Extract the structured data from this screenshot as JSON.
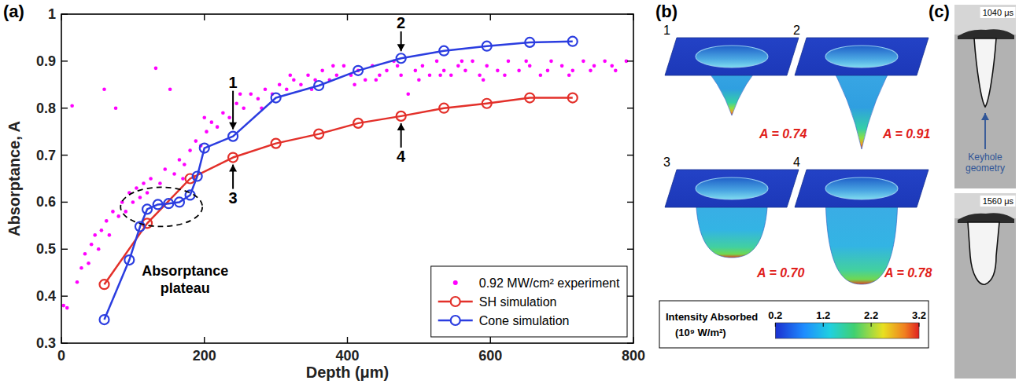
{
  "chart_data": {
    "type": "line",
    "xlabel": "Depth (μm)",
    "ylabel": "Absorptance, A",
    "xlim": [
      0,
      800
    ],
    "xticks": [
      0,
      200,
      400,
      600,
      800
    ],
    "ylim": [
      0.3,
      1
    ],
    "yticks": [
      0.3,
      0.4,
      0.5,
      0.6,
      0.7,
      0.8,
      0.9,
      1
    ],
    "grid": false,
    "legend": "lower right",
    "series": [
      {
        "name": "0.92 MW/cm² experiment",
        "type": "scatter",
        "marker": "dot",
        "color": "#ff00ff",
        "x": [
          3,
          8,
          15,
          22,
          28,
          33,
          38,
          42,
          47,
          52,
          56,
          60,
          63,
          67,
          72,
          76,
          80,
          85,
          90,
          95,
          100,
          105,
          110,
          115,
          120,
          125,
          132,
          138,
          145,
          152,
          158,
          165,
          172,
          180,
          188,
          195,
          203,
          210,
          218,
          226,
          235,
          245,
          255,
          265,
          275,
          285,
          295,
          305,
          315,
          325,
          335,
          345,
          355,
          365,
          375,
          385,
          395,
          405,
          415,
          425,
          435,
          445,
          455,
          465,
          475,
          485,
          495,
          505,
          515,
          525,
          535,
          545,
          555,
          565,
          575,
          585,
          595,
          610,
          625,
          640,
          655,
          670,
          685,
          700,
          715,
          730,
          745,
          760,
          775,
          790,
          320,
          350,
          380,
          410,
          440,
          470,
          500,
          530,
          560,
          590,
          620,
          650,
          680,
          710,
          740,
          770,
          250,
          280,
          200,
          170
        ],
        "values": [
          0.38,
          0.375,
          0.805,
          0.43,
          0.46,
          0.49,
          0.47,
          0.51,
          0.53,
          0.5,
          0.54,
          0.84,
          0.56,
          0.53,
          0.58,
          0.8,
          0.57,
          0.6,
          0.58,
          0.62,
          0.6,
          0.63,
          0.61,
          0.64,
          0.62,
          0.65,
          0.885,
          0.64,
          0.67,
          0.84,
          0.66,
          0.69,
          0.68,
          0.71,
          0.73,
          0.72,
          0.75,
          0.77,
          0.76,
          0.79,
          0.78,
          0.81,
          0.8,
          0.83,
          0.82,
          0.84,
          0.83,
          0.85,
          0.84,
          0.86,
          0.85,
          0.87,
          0.86,
          0.88,
          0.86,
          0.87,
          0.89,
          0.87,
          0.88,
          0.86,
          0.89,
          0.87,
          0.88,
          0.9,
          0.87,
          0.83,
          0.88,
          0.89,
          0.87,
          0.9,
          0.88,
          0.87,
          0.89,
          0.88,
          0.9,
          0.87,
          0.89,
          0.88,
          0.9,
          0.88,
          0.89,
          0.87,
          0.9,
          0.89,
          0.88,
          0.9,
          0.89,
          0.9,
          0.88,
          0.9,
          0.87,
          0.84,
          0.89,
          0.85,
          0.86,
          0.89,
          0.86,
          0.87,
          0.9,
          0.86,
          0.87,
          0.9,
          0.88,
          0.87,
          0.88,
          0.89,
          0.83,
          0.8,
          0.78,
          0.65
        ]
      },
      {
        "name": "SH simulation",
        "type": "line",
        "marker": "circle",
        "line_style": "solid",
        "color": "#e3302a",
        "x": [
          60,
          120,
          180,
          240,
          300,
          360,
          415,
          475,
          535,
          595,
          655,
          715
        ],
        "values": [
          0.425,
          0.555,
          0.65,
          0.695,
          0.725,
          0.745,
          0.768,
          0.783,
          0.8,
          0.81,
          0.822,
          0.822
        ]
      },
      {
        "name": "Cone simulation",
        "type": "line",
        "marker": "circle",
        "line_style": "solid",
        "color": "#2b3de0",
        "x": [
          60,
          95,
          110,
          120,
          135,
          150,
          165,
          180,
          190,
          200,
          240,
          300,
          360,
          415,
          475,
          535,
          595,
          655,
          715
        ],
        "values": [
          0.35,
          0.477,
          0.548,
          0.585,
          0.595,
          0.597,
          0.6,
          0.615,
          0.655,
          0.715,
          0.74,
          0.822,
          0.848,
          0.88,
          0.906,
          0.922,
          0.932,
          0.94,
          0.942
        ]
      }
    ],
    "annotations": [
      {
        "text": "1",
        "x": 240,
        "y": 0.74
      },
      {
        "text": "2",
        "x": 475,
        "y": 0.906
      },
      {
        "text": "3",
        "x": 240,
        "y": 0.695
      },
      {
        "text": "4",
        "x": 475,
        "y": 0.783
      },
      {
        "text": "Absorptance plateau",
        "x": 140,
        "y": 0.59
      }
    ]
  },
  "panel_labels": [
    "(a)",
    "(b)",
    "(c)"
  ],
  "panel_b": {
    "keyholes": [
      {
        "label": "1",
        "absorptance": "A = 0.74"
      },
      {
        "label": "2",
        "absorptance": "A = 0.91"
      },
      {
        "label": "3",
        "absorptance": "A = 0.70"
      },
      {
        "label": "4",
        "absorptance": "A = 0.78"
      }
    ],
    "colorbar": {
      "title": "Intensity Absorbed",
      "unit": "(10⁹ W/m²)",
      "range": [
        0.2,
        3.2
      ],
      "ticks": [
        0.2,
        1.2,
        2.2,
        3.2
      ]
    }
  },
  "panel_c": {
    "images": [
      {
        "time": "1040 μs",
        "annotation": "Keyhole geometry"
      },
      {
        "time": "1560 μs"
      }
    ]
  }
}
